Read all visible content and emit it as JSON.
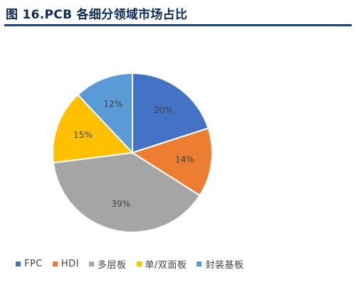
{
  "figure": {
    "title": "图 16.PCB 各细分领域市场占比"
  },
  "chart_data": {
    "type": "pie",
    "title": "",
    "slices": [
      {
        "label": "FPC",
        "value": 20,
        "display": "20%",
        "color": "#4472c4"
      },
      {
        "label": "HDI",
        "value": 14,
        "display": "14%",
        "color": "#ed7d31"
      },
      {
        "label": "多层板",
        "value": 39,
        "display": "39%",
        "color": "#a5a5a5"
      },
      {
        "label": "单/双面板",
        "value": 15,
        "display": "15%",
        "color": "#ffc000"
      },
      {
        "label": "封装基板",
        "value": 12,
        "display": "12%",
        "color": "#5b9bd5"
      }
    ],
    "start_angle": "12 o'clock",
    "direction": "clockwise",
    "legend_position": "bottom-left",
    "data_labels": "inside"
  }
}
